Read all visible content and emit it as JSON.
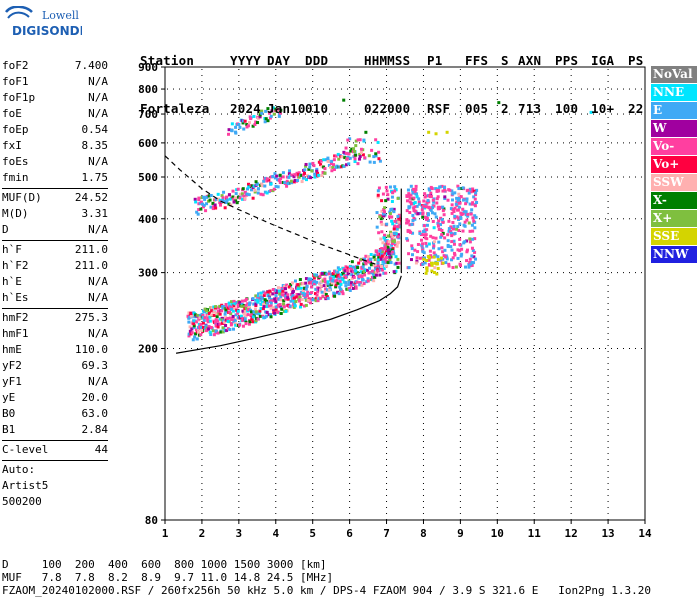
{
  "logo": {
    "line1": "Lowell",
    "line2": "DIGISONDE"
  },
  "header": {
    "labels": [
      "Station",
      "YYYY",
      "DAY",
      "DDD",
      "HHMMSS",
      "P1",
      "FFS",
      "S",
      "AXN",
      "PPS",
      "IGA",
      "PS"
    ],
    "values": [
      "Fortaleza",
      "2024",
      "Jan10",
      "010",
      "022000",
      "RSF",
      "005",
      "2",
      "713",
      "100",
      "10+",
      "22"
    ]
  },
  "params": {
    "group1": [
      {
        "name": "foF2",
        "value": "7.400"
      },
      {
        "name": "foF1",
        "value": "N/A"
      },
      {
        "name": "foF1p",
        "value": "N/A"
      },
      {
        "name": "foE",
        "value": "N/A"
      },
      {
        "name": "foEp",
        "value": "0.54"
      },
      {
        "name": "fxI",
        "value": "8.35"
      },
      {
        "name": "foEs",
        "value": "N/A"
      },
      {
        "name": "fmin",
        "value": "1.75"
      }
    ],
    "group2": [
      {
        "name": "MUF(D)",
        "value": "24.52"
      },
      {
        "name": "M(D)",
        "value": "3.31"
      },
      {
        "name": "D",
        "value": "N/A"
      }
    ],
    "group3": [
      {
        "name": "h`F",
        "value": "211.0"
      },
      {
        "name": "h`F2",
        "value": "211.0"
      },
      {
        "name": "h`E",
        "value": "N/A"
      },
      {
        "name": "h`Es",
        "value": "N/A"
      }
    ],
    "group4": [
      {
        "name": "hmF2",
        "value": "275.3"
      },
      {
        "name": "hmF1",
        "value": "N/A"
      },
      {
        "name": "hmE",
        "value": "110.0"
      },
      {
        "name": "yF2",
        "value": "69.3"
      },
      {
        "name": "yF1",
        "value": "N/A"
      },
      {
        "name": "yE",
        "value": "20.0"
      },
      {
        "name": "B0",
        "value": "63.0"
      },
      {
        "name": "B1",
        "value": "2.84"
      }
    ],
    "group5": [
      {
        "name": "C-level",
        "value": "44"
      }
    ],
    "auto": [
      "Auto:",
      "Artist5",
      "500200"
    ]
  },
  "legend": [
    {
      "label": "NoVal",
      "color": "#808080"
    },
    {
      "label": "NNE",
      "color": "#00e5ff"
    },
    {
      "label": "E",
      "color": "#3fa9f5"
    },
    {
      "label": "W",
      "color": "#a0009f"
    },
    {
      "label": "Vo-",
      "color": "#ff3fa0"
    },
    {
      "label": "Vo+",
      "color": "#ff0040"
    },
    {
      "label": "SSW",
      "color": "#ffb0b0"
    },
    {
      "label": "X-",
      "color": "#007f00"
    },
    {
      "label": "X+",
      "color": "#7fbf3f"
    },
    {
      "label": "SSE",
      "color": "#d4d400"
    },
    {
      "label": "NNW",
      "color": "#2020e0"
    }
  ],
  "footer": {
    "d_line": "D     100  200  400  600  800 1000 1500 3000 [km]",
    "muf_line": "MUF   7.8  7.8  8.2  8.9  9.7 11.0 14.8 24.5 [MHz]",
    "info_line": "FZAOM_20240102000.RSF / 260fx256h 50 kHz 5.0 km / DPS-4 FZAOM 904 / 3.9 S 321.6 E   Ion2Png 1.3.20"
  },
  "chart_data": {
    "type": "scatter",
    "xlim": [
      1,
      14
    ],
    "ylim": [
      80,
      900
    ],
    "xticks": [
      "1",
      "2",
      "3",
      "4",
      "5",
      "6",
      "7",
      "8",
      "9",
      "10",
      "11",
      "12",
      "13",
      "14"
    ],
    "yticks": [
      "80",
      "200",
      "300",
      "400",
      "500",
      "600",
      "700",
      "800",
      "900"
    ],
    "yscale": "log",
    "grid": true,
    "traces": [
      {
        "name": "F2 o-trace",
        "x": [
          1.6,
          2.0,
          2.5,
          3.0,
          3.5,
          4.0,
          4.5,
          5.0,
          5.5,
          6.0,
          6.5,
          6.8,
          7.0,
          7.2,
          7.35
        ],
        "y": [
          214,
          218,
          224,
          230,
          238,
          246,
          254,
          262,
          270,
          280,
          292,
          302,
          318,
          345,
          395
        ]
      },
      {
        "name": "2F2 trace",
        "x": [
          1.8,
          2.2,
          2.6,
          3.0,
          3.5,
          4.0,
          4.5,
          5.0,
          5.5,
          5.8,
          6.1
        ],
        "y": [
          425,
          432,
          440,
          452,
          468,
          486,
          500,
          518,
          532,
          545,
          556
        ]
      },
      {
        "name": "3F2 trace",
        "x": [
          2.7,
          3.0,
          3.4,
          3.8,
          4.1
        ],
        "y": [
          640,
          660,
          682,
          702,
          720
        ]
      },
      {
        "name": "x-trace cluster",
        "x": [
          7.6,
          8.0,
          8.4,
          8.8,
          9.2
        ],
        "y": [
          380,
          390,
          385,
          375,
          370
        ]
      },
      {
        "name": "profile",
        "x": [
          1.3,
          2.5,
          3.5,
          4.5,
          5.5,
          6.2,
          6.8,
          7.1,
          7.3,
          7.4
        ],
        "y": [
          195,
          203,
          212,
          222,
          234,
          246,
          258,
          268,
          278,
          295
        ]
      },
      {
        "name": "MUF curve",
        "x": [
          1.0,
          1.4,
          2.0,
          2.5,
          3.0,
          3.5,
          4.0,
          4.5,
          5.0,
          5.5,
          6.0,
          6.5,
          6.8
        ],
        "y": [
          560,
          520,
          470,
          440,
          420,
          402,
          385,
          370,
          355,
          342,
          330,
          318,
          312
        ]
      },
      {
        "name": "sparse",
        "x": [
          8.1,
          8.3,
          8.6,
          10.0,
          12.5,
          5.8,
          6.4
        ],
        "y": [
          640,
          635,
          640,
          750,
          712,
          760,
          640
        ]
      }
    ]
  }
}
